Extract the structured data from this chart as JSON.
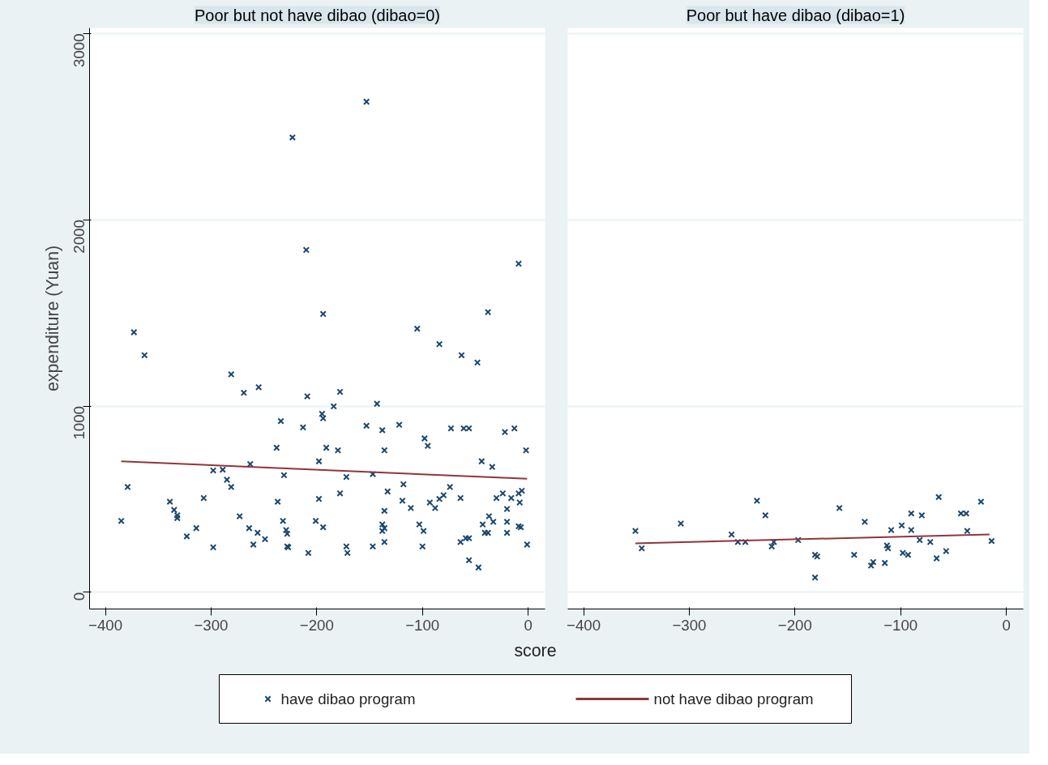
{
  "chart_data": [
    {
      "type": "scatter",
      "title": "Poor but not have dibao (dibao=0)",
      "ylabel": "expenditure (Yuan)",
      "xlabel": "score",
      "legend": "bottom",
      "grid": "y",
      "xlim": [
        -415,
        16
      ],
      "ylim": [
        -90,
        3030
      ],
      "xticks": [
        -400,
        -300,
        -200,
        -100,
        0
      ],
      "yticks": [
        0,
        1000,
        2000,
        3000
      ],
      "series": [
        {
          "name": "have dibao program",
          "type": "scatter",
          "marker": "cross",
          "color": "#1a476f",
          "x": [
            -385,
            -379,
            -373,
            -363,
            -339,
            -335,
            -332,
            -332,
            -323,
            -314,
            -307,
            -298,
            -298,
            -289,
            -285,
            -281,
            -281,
            -273,
            -269,
            -264,
            -263,
            -260,
            -256,
            -255,
            -249,
            -238,
            -234,
            -237,
            -232,
            -231,
            -229,
            -228,
            -228,
            -227,
            -223,
            -213,
            -210,
            -209,
            -208,
            -201,
            -198,
            -198,
            -195,
            -194,
            -194,
            -194,
            -191,
            -180,
            -184,
            -178,
            -178,
            -172,
            -172,
            -171,
            -153,
            -153,
            -147,
            -147,
            -143,
            -138,
            -136,
            -136,
            -138,
            -136,
            -138,
            -136,
            -133,
            -122,
            -119,
            -118,
            -111,
            -105,
            -103,
            -100,
            -99,
            -98,
            -95,
            -93,
            -88,
            -84,
            -84,
            -80,
            -74,
            -73,
            -64,
            -64,
            -63,
            -61,
            -59,
            -56,
            -56,
            -56,
            -48,
            -47,
            -44,
            -43,
            -41,
            -38,
            -38,
            -37,
            -34,
            -33,
            -30,
            -24,
            -22,
            -20,
            -20,
            -20,
            -16,
            -13,
            -9,
            -9,
            -7,
            -6,
            -8,
            -9,
            -2,
            -1
          ],
          "values": [
            383,
            565,
            1396,
            1273,
            486,
            442,
            413,
            398,
            300,
            344,
            506,
            241,
            654,
            658,
            604,
            565,
            1170,
            408,
            1071,
            344,
            688,
            256,
            319,
            1101,
            285,
            776,
            919,
            486,
            383,
            629,
            334,
            314,
            246,
            241,
            2442,
            885,
            1838,
            1052,
            211,
            383,
            501,
            703,
            958,
            934,
            1494,
            349,
            776,
            762,
            998,
            1076,
            531,
            619,
            246,
            211,
            2634,
            894,
            634,
            246,
            1012,
            870,
            762,
            437,
            364,
            344,
            329,
            270,
            541,
            899,
            491,
            580,
            452,
            1415,
            364,
            246,
            329,
            826,
            786,
            482,
            452,
            501,
            1332,
            521,
            565,
            880,
            506,
            270,
            1273,
            880,
            290,
            880,
            290,
            172,
            1233,
            133,
            703,
            364,
            319,
            1504,
            319,
            408,
            673,
            378,
            506,
            531,
            860,
            447,
            378,
            319,
            506,
            880,
            531,
            354,
            349,
            545,
            482,
            1764,
            762,
            256
          ]
        },
        {
          "name": "not have dibao program",
          "type": "line",
          "color": "#90353b",
          "x": [
            -385,
            -1
          ],
          "values": [
            703,
            609
          ]
        }
      ]
    },
    {
      "type": "scatter",
      "title": "Poor but have dibao (dibao=1)",
      "grid": "y",
      "tick_labels": "x",
      "xlim": [
        -415,
        16
      ],
      "ylim": [
        -90,
        3030
      ],
      "xticks": [
        -400,
        -300,
        -200,
        -100,
        0
      ],
      "yticks": [
        0,
        1000,
        2000,
        3000
      ],
      "series": [
        {
          "type": "scatter",
          "marker": "cross",
          "color": "#1a476f",
          "x": [
            -351,
            -345,
            -308,
            -260,
            -254,
            -247,
            -236,
            -228,
            -222,
            -220,
            -197,
            -181,
            -179,
            -181,
            -158,
            -144,
            -134,
            -128,
            -126,
            -115,
            -113,
            -112,
            -109,
            -99,
            -98,
            -93,
            -90,
            -90,
            -80,
            -82,
            -72,
            -66,
            -64,
            -57,
            -43,
            -38,
            -37,
            -24,
            -14
          ],
          "values": [
            329,
            236,
            369,
            310,
            270,
            270,
            491,
            413,
            246,
            270,
            280,
            201,
            192,
            79,
            452,
            201,
            378,
            143,
            162,
            157,
            251,
            236,
            334,
            359,
            211,
            201,
            423,
            334,
            413,
            280,
            270,
            182,
            511,
            221,
            423,
            423,
            329,
            486,
            275
          ]
        },
        {
          "type": "line",
          "color": "#90353b",
          "x": [
            -351,
            -16
          ],
          "values": [
            263,
            310
          ]
        }
      ]
    }
  ]
}
